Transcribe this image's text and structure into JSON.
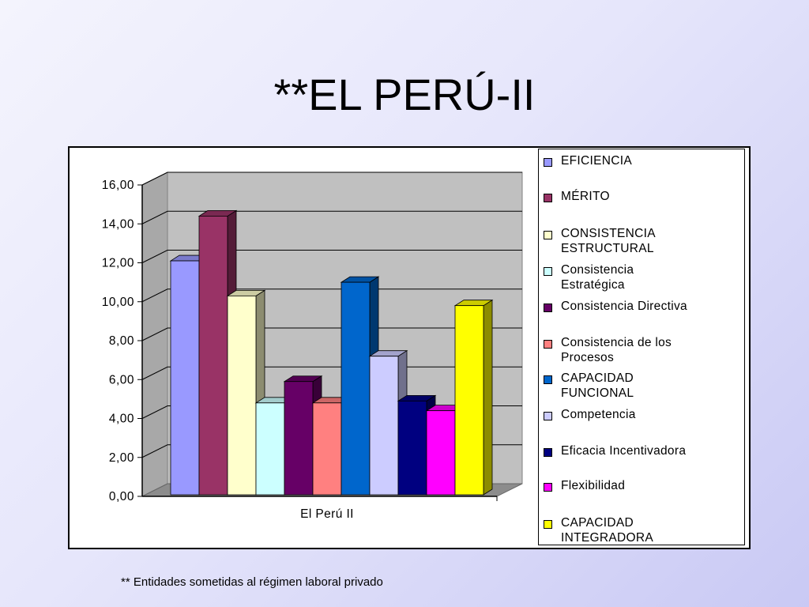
{
  "slide": {
    "title": "**EL PERÚ-II",
    "footnote": "** Entidades sometidas al régimen laboral privado"
  },
  "chart_data": {
    "type": "bar",
    "categories": [
      "El Perú II"
    ],
    "ylim": [
      0,
      16
    ],
    "yticks": [
      "0,00",
      "2,00",
      "4,00",
      "6,00",
      "8,00",
      "10,00",
      "12,00",
      "14,00",
      "16,00"
    ],
    "grid": true,
    "legend_position": "right",
    "series": [
      {
        "name": "EFICIENCIA",
        "values": [
          12.1
        ],
        "color": "#9999ff"
      },
      {
        "name": "MÉRITO",
        "values": [
          14.4
        ],
        "color": "#993366"
      },
      {
        "name": "CONSISTENCIA ESTRUCTURAL",
        "values": [
          10.3
        ],
        "color": "#ffffcc"
      },
      {
        "name": "Consistencia Estratégica",
        "values": [
          4.8
        ],
        "color": "#ccffff"
      },
      {
        "name": "Consistencia Directiva",
        "values": [
          5.9
        ],
        "color": "#660066"
      },
      {
        "name": "Consistencia de los Procesos",
        "values": [
          4.8
        ],
        "color": "#ff8080"
      },
      {
        "name": "CAPACIDAD FUNCIONAL",
        "values": [
          11.0
        ],
        "color": "#0066cc"
      },
      {
        "name": "Competencia",
        "values": [
          7.2
        ],
        "color": "#ccccff"
      },
      {
        "name": "Eficacia Incentivadora",
        "values": [
          4.9
        ],
        "color": "#000080"
      },
      {
        "name": "Flexibilidad",
        "values": [
          4.4
        ],
        "color": "#ff00ff"
      },
      {
        "name": "CAPACIDAD INTEGRADORA",
        "values": [
          9.8
        ],
        "color": "#ffff00"
      }
    ],
    "legend_labels": [
      "EFICIENCIA",
      "MÉRITO",
      "CONSISTENCIA\nESTRUCTURAL",
      "Consistencia\nEstratégica",
      "Consistencia Directiva",
      "Consistencia de los\nProcesos",
      "CAPACIDAD\nFUNCIONAL",
      "Competencia",
      "Eficacia Incentivadora",
      "Flexibilidad",
      "CAPACIDAD\nINTEGRADORA"
    ]
  }
}
